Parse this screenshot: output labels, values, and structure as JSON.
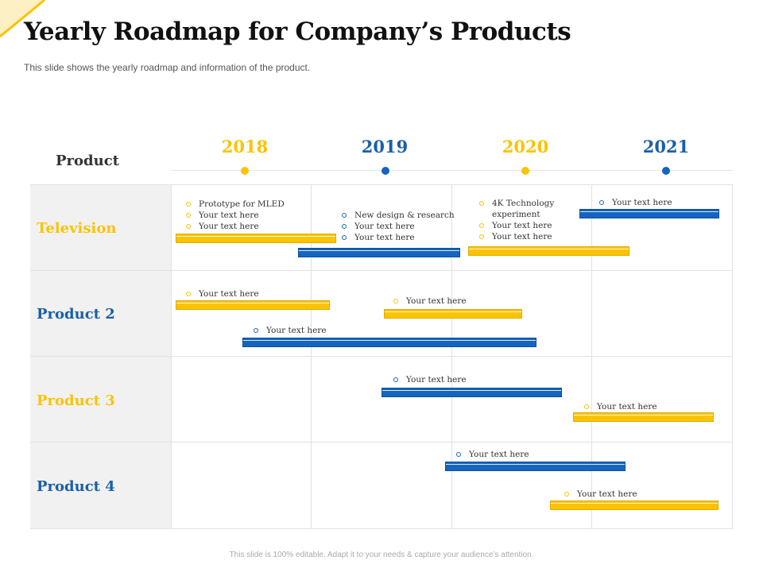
{
  "title": "Yearly Roadmap for Company’s Products",
  "subtitle": "This slide shows the yearly roadmap and information of the product.",
  "column_header": "Product",
  "years": [
    "2018",
    "2019",
    "2020",
    "2021"
  ],
  "colors": {
    "yellow": "#fbc300",
    "blue": "#1565c0",
    "row_bg": "#f1f1f1"
  },
  "rows": [
    {
      "label": "Television",
      "color": "yellow"
    },
    {
      "label": "Product 2",
      "color": "blue"
    },
    {
      "label": "Product 3",
      "color": "yellow"
    },
    {
      "label": "Product 4",
      "color": "blue"
    }
  ],
  "notes": {
    "tv_2018": [
      "Prototype for MLED",
      "Your text here",
      "Your text here"
    ],
    "tv_2019": [
      "New design & research",
      "Your text here",
      "Your text here"
    ],
    "tv_2020": [
      "4K Technology",
      "experiment",
      "Your text here",
      "Your text here"
    ],
    "tv_2021": [
      "Your text here"
    ],
    "p2_a": [
      "Your text here"
    ],
    "p2_b": [
      "Your text here"
    ],
    "p2_c": [
      "Your text here"
    ],
    "p3_a": [
      "Your text here"
    ],
    "p3_b": [
      "Your text here"
    ],
    "p4_a": [
      "Your text here"
    ],
    "p4_b": [
      "Your text here"
    ]
  },
  "footer": "This slide is 100% editable. Adapt it to your needs & capture your audience’s attention."
}
